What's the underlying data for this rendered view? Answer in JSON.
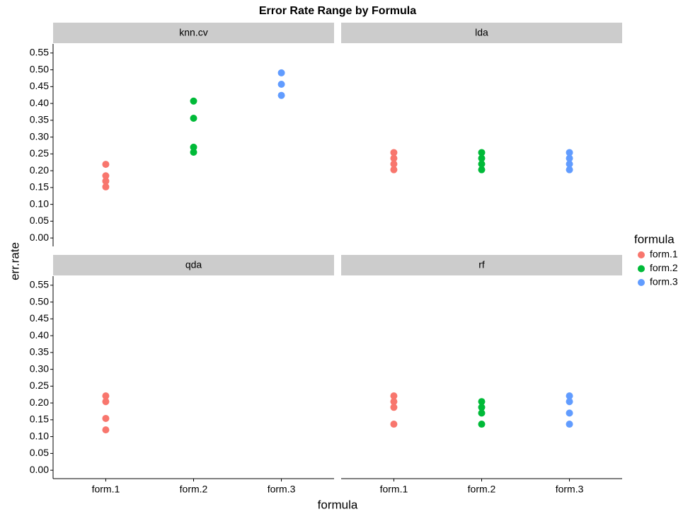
{
  "chart_data": {
    "type": "scatter",
    "title": "Error Rate Range by Formula",
    "x_label": "formula",
    "y_label": "err.rate",
    "legend_title": "formula",
    "categories": [
      "form.1",
      "form.2",
      "form.3"
    ],
    "series": [
      {
        "name": "form.1",
        "color": "#f8766d"
      },
      {
        "name": "form.2",
        "color": "#00ba38"
      },
      {
        "name": "form.3",
        "color": "#619cff"
      }
    ],
    "ylim": [
      -0.025,
      0.577
    ],
    "yticks": [
      {
        "value": 0,
        "label": "0.00"
      },
      {
        "value": 0.05,
        "label": "0.05"
      },
      {
        "value": 0.1,
        "label": "0.10"
      },
      {
        "value": 0.15,
        "label": "0.15"
      },
      {
        "value": 0.2,
        "label": "0.20"
      },
      {
        "value": 0.25,
        "label": "0.25"
      },
      {
        "value": 0.3,
        "label": "0.30"
      },
      {
        "value": 0.35,
        "label": "0.35"
      },
      {
        "value": 0.4,
        "label": "0.40"
      },
      {
        "value": 0.45,
        "label": "0.45"
      },
      {
        "value": 0.5,
        "label": "0.50"
      },
      {
        "value": 0.55,
        "label": "0.55"
      }
    ],
    "facets": [
      {
        "title": "knn.cv",
        "values": [
          [
            0.219,
            0.185,
            0.169,
            0.152
          ],
          [
            0.407,
            0.356,
            0.27,
            0.255
          ],
          [
            0.491,
            0.457,
            0.424
          ]
        ]
      },
      {
        "title": "lda",
        "values": [
          [
            0.254,
            0.237,
            0.22,
            0.203
          ],
          [
            0.254,
            0.237,
            0.22,
            0.203
          ],
          [
            0.254,
            0.237,
            0.22,
            0.203
          ]
        ]
      },
      {
        "title": "qda",
        "values": [
          [
            0.221,
            0.204,
            0.154,
            0.12
          ],
          [],
          []
        ]
      },
      {
        "title": "rf",
        "values": [
          [
            0.221,
            0.204,
            0.187,
            0.137
          ],
          [
            0.204,
            0.187,
            0.17,
            0.137
          ],
          [
            0.221,
            0.204,
            0.17,
            0.137
          ]
        ]
      }
    ]
  }
}
